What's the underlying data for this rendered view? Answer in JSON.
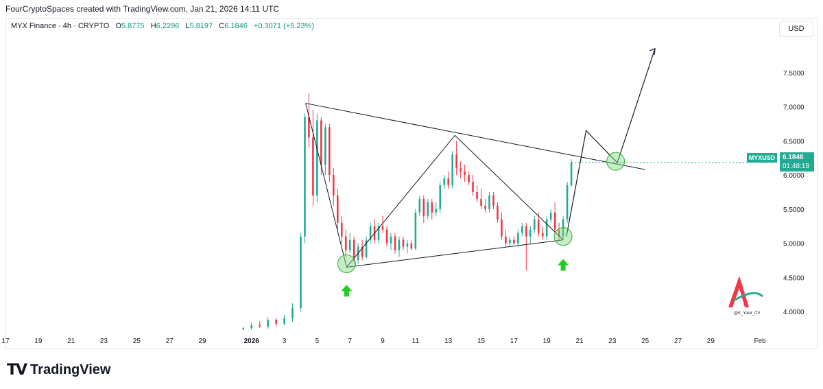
{
  "credit": "FourCryptoSpaces created with TradingView.com, Jan 21, 2026 14:11 UTC",
  "legend": {
    "symbol": "MYX Finance · 4h · CRYPTO",
    "o_label": "O",
    "o_value": "5.8775",
    "h_label": "H",
    "h_value": "6.2296",
    "l_label": "L",
    "l_value": "5.8197",
    "c_label": "C",
    "c_value": "6.1846",
    "change": "+0.3071 (+5.23%)"
  },
  "currency_button": "USD",
  "price_badge": {
    "symbol": "MYXUSD",
    "price": "6.1846",
    "countdown": "01:48:18"
  },
  "branding": {
    "logo_text": "TradingView",
    "watermark_text": "@K_Yasir_CV"
  },
  "colors": {
    "up": "#22ab94",
    "down": "#f23645",
    "line": "#131722",
    "highlight": "#7ddc7d",
    "arrow": "#22cc22"
  },
  "chart_data": {
    "type": "candlestick",
    "x_ticks": [
      "17",
      "19",
      "21",
      "23",
      "25",
      "27",
      "29",
      "2026",
      "3",
      "5",
      "7",
      "9",
      "11",
      "13",
      "15",
      "17",
      "19",
      "21",
      "23",
      "25",
      "27",
      "29",
      "Feb"
    ],
    "y_ticks": [
      "7.5000",
      "7.0000",
      "6.5000",
      "6.0000",
      "5.5000",
      "5.0000",
      "4.5000",
      "4.0000"
    ],
    "ylim": [
      3.7,
      8.0
    ],
    "x_range_days": [
      -15,
      32
    ],
    "last_price": 6.1846,
    "candles": [
      {
        "t": -0.5,
        "o": 3.74,
        "h": 3.78,
        "l": 3.72,
        "c": 3.76
      },
      {
        "t": 0.0,
        "o": 3.76,
        "h": 3.84,
        "l": 3.73,
        "c": 3.8
      },
      {
        "t": 0.5,
        "o": 3.8,
        "h": 3.86,
        "l": 3.76,
        "c": 3.78
      },
      {
        "t": 1.0,
        "o": 3.78,
        "h": 3.92,
        "l": 3.75,
        "c": 3.88
      },
      {
        "t": 1.5,
        "o": 3.88,
        "h": 3.9,
        "l": 3.78,
        "c": 3.82
      },
      {
        "t": 2.0,
        "o": 3.82,
        "h": 3.95,
        "l": 3.8,
        "c": 3.9
      },
      {
        "t": 2.5,
        "o": 3.9,
        "h": 4.12,
        "l": 3.85,
        "c": 4.05
      },
      {
        "t": 3.0,
        "o": 4.05,
        "h": 5.15,
        "l": 4.0,
        "c": 5.1
      },
      {
        "t": 3.25,
        "o": 5.1,
        "h": 6.9,
        "l": 5.0,
        "c": 6.85
      },
      {
        "t": 3.5,
        "o": 6.85,
        "h": 7.2,
        "l": 6.4,
        "c": 6.55
      },
      {
        "t": 3.75,
        "o": 6.55,
        "h": 6.95,
        "l": 5.55,
        "c": 5.7
      },
      {
        "t": 4.0,
        "o": 5.7,
        "h": 6.9,
        "l": 5.6,
        "c": 6.8
      },
      {
        "t": 4.25,
        "o": 6.8,
        "h": 6.85,
        "l": 6.0,
        "c": 6.15
      },
      {
        "t": 4.5,
        "o": 6.15,
        "h": 6.75,
        "l": 6.0,
        "c": 6.7
      },
      {
        "t": 4.75,
        "o": 6.7,
        "h": 6.75,
        "l": 5.9,
        "c": 6.0
      },
      {
        "t": 5.0,
        "o": 6.0,
        "h": 6.1,
        "l": 5.55,
        "c": 5.7
      },
      {
        "t": 5.25,
        "o": 5.7,
        "h": 5.8,
        "l": 5.2,
        "c": 5.3
      },
      {
        "t": 5.5,
        "o": 5.3,
        "h": 5.4,
        "l": 5.0,
        "c": 5.1
      },
      {
        "t": 5.75,
        "o": 5.1,
        "h": 5.2,
        "l": 4.8,
        "c": 4.9
      },
      {
        "t": 6.0,
        "o": 4.9,
        "h": 5.15,
        "l": 4.85,
        "c": 5.05
      },
      {
        "t": 6.25,
        "o": 5.05,
        "h": 5.1,
        "l": 4.7,
        "c": 4.75
      },
      {
        "t": 6.5,
        "o": 4.75,
        "h": 5.0,
        "l": 4.7,
        "c": 4.95
      },
      {
        "t": 6.75,
        "o": 4.95,
        "h": 5.05,
        "l": 4.75,
        "c": 4.8
      },
      {
        "t": 7.0,
        "o": 4.8,
        "h": 5.1,
        "l": 4.78,
        "c": 5.05
      },
      {
        "t": 7.25,
        "o": 5.05,
        "h": 5.3,
        "l": 5.0,
        "c": 5.25
      },
      {
        "t": 7.5,
        "o": 5.25,
        "h": 5.35,
        "l": 5.0,
        "c": 5.05
      },
      {
        "t": 7.75,
        "o": 5.05,
        "h": 5.3,
        "l": 5.0,
        "c": 5.25
      },
      {
        "t": 8.0,
        "o": 5.25,
        "h": 5.4,
        "l": 5.15,
        "c": 5.2
      },
      {
        "t": 8.25,
        "o": 5.2,
        "h": 5.25,
        "l": 4.95,
        "c": 5.0
      },
      {
        "t": 8.5,
        "o": 5.0,
        "h": 5.15,
        "l": 4.9,
        "c": 5.1
      },
      {
        "t": 8.75,
        "o": 5.1,
        "h": 5.15,
        "l": 4.85,
        "c": 4.9
      },
      {
        "t": 9.0,
        "o": 4.9,
        "h": 5.1,
        "l": 4.8,
        "c": 5.05
      },
      {
        "t": 9.25,
        "o": 5.05,
        "h": 5.1,
        "l": 4.9,
        "c": 4.95
      },
      {
        "t": 9.5,
        "o": 4.95,
        "h": 5.05,
        "l": 4.85,
        "c": 5.0
      },
      {
        "t": 9.75,
        "o": 5.0,
        "h": 5.05,
        "l": 4.9,
        "c": 4.92
      },
      {
        "t": 10.0,
        "o": 4.92,
        "h": 5.5,
        "l": 4.9,
        "c": 5.45
      },
      {
        "t": 10.25,
        "o": 5.45,
        "h": 5.7,
        "l": 5.4,
        "c": 5.65
      },
      {
        "t": 10.5,
        "o": 5.65,
        "h": 5.7,
        "l": 5.3,
        "c": 5.4
      },
      {
        "t": 10.75,
        "o": 5.4,
        "h": 5.65,
        "l": 5.35,
        "c": 5.6
      },
      {
        "t": 11.0,
        "o": 5.6,
        "h": 5.65,
        "l": 5.35,
        "c": 5.45
      },
      {
        "t": 11.25,
        "o": 5.45,
        "h": 5.6,
        "l": 5.4,
        "c": 5.5
      },
      {
        "t": 11.5,
        "o": 5.5,
        "h": 5.9,
        "l": 5.45,
        "c": 5.85
      },
      {
        "t": 11.75,
        "o": 5.85,
        "h": 6.0,
        "l": 5.8,
        "c": 5.95
      },
      {
        "t": 12.0,
        "o": 5.95,
        "h": 6.05,
        "l": 5.8,
        "c": 5.85
      },
      {
        "t": 12.25,
        "o": 5.85,
        "h": 6.35,
        "l": 5.8,
        "c": 6.3
      },
      {
        "t": 12.5,
        "o": 6.3,
        "h": 6.5,
        "l": 6.0,
        "c": 6.1
      },
      {
        "t": 12.75,
        "o": 6.1,
        "h": 6.2,
        "l": 5.95,
        "c": 6.05
      },
      {
        "t": 13.0,
        "o": 6.05,
        "h": 6.15,
        "l": 5.9,
        "c": 6.0
      },
      {
        "t": 13.25,
        "o": 6.0,
        "h": 6.05,
        "l": 5.85,
        "c": 5.9
      },
      {
        "t": 13.5,
        "o": 5.9,
        "h": 6.0,
        "l": 5.7,
        "c": 5.75
      },
      {
        "t": 13.75,
        "o": 5.75,
        "h": 5.85,
        "l": 5.6,
        "c": 5.65
      },
      {
        "t": 14.0,
        "o": 5.65,
        "h": 5.8,
        "l": 5.5,
        "c": 5.55
      },
      {
        "t": 14.25,
        "o": 5.55,
        "h": 5.65,
        "l": 5.45,
        "c": 5.5
      },
      {
        "t": 14.5,
        "o": 5.5,
        "h": 5.75,
        "l": 5.45,
        "c": 5.7
      },
      {
        "t": 14.75,
        "o": 5.7,
        "h": 5.75,
        "l": 5.5,
        "c": 5.55
      },
      {
        "t": 15.0,
        "o": 5.55,
        "h": 5.6,
        "l": 5.3,
        "c": 5.35
      },
      {
        "t": 15.25,
        "o": 5.35,
        "h": 5.45,
        "l": 5.05,
        "c": 5.1
      },
      {
        "t": 15.5,
        "o": 5.1,
        "h": 5.2,
        "l": 4.95,
        "c": 5.0
      },
      {
        "t": 15.75,
        "o": 5.0,
        "h": 5.1,
        "l": 4.95,
        "c": 5.05
      },
      {
        "t": 16.0,
        "o": 5.05,
        "h": 5.1,
        "l": 4.98,
        "c": 5.0
      },
      {
        "t": 16.25,
        "o": 5.0,
        "h": 5.2,
        "l": 4.95,
        "c": 5.15
      },
      {
        "t": 16.5,
        "o": 5.15,
        "h": 5.3,
        "l": 5.1,
        "c": 5.25
      },
      {
        "t": 16.75,
        "o": 5.25,
        "h": 5.3,
        "l": 4.6,
        "c": 5.1
      },
      {
        "t": 17.0,
        "o": 5.1,
        "h": 5.25,
        "l": 5.0,
        "c": 5.2
      },
      {
        "t": 17.25,
        "o": 5.2,
        "h": 5.4,
        "l": 5.15,
        "c": 5.35
      },
      {
        "t": 17.5,
        "o": 5.35,
        "h": 5.45,
        "l": 5.1,
        "c": 5.15
      },
      {
        "t": 17.75,
        "o": 5.15,
        "h": 5.25,
        "l": 5.05,
        "c": 5.1
      },
      {
        "t": 18.0,
        "o": 5.1,
        "h": 5.4,
        "l": 5.05,
        "c": 5.35
      },
      {
        "t": 18.25,
        "o": 5.35,
        "h": 5.5,
        "l": 5.3,
        "c": 5.45
      },
      {
        "t": 18.5,
        "o": 5.45,
        "h": 5.6,
        "l": 5.15,
        "c": 5.2
      },
      {
        "t": 18.75,
        "o": 5.2,
        "h": 5.3,
        "l": 5.05,
        "c": 5.1
      },
      {
        "t": 19.0,
        "o": 5.1,
        "h": 5.4,
        "l": 5.05,
        "c": 5.35
      },
      {
        "t": 19.25,
        "o": 5.35,
        "h": 5.9,
        "l": 5.3,
        "c": 5.85
      },
      {
        "t": 19.5,
        "o": 5.85,
        "h": 6.23,
        "l": 5.82,
        "c": 6.18
      }
    ],
    "annotations": {
      "triangle_upper_line": [
        [
          3.3,
          7.05
        ],
        [
          24.0,
          6.08
        ]
      ],
      "triangle_lower_line": [
        [
          5.8,
          4.65
        ],
        [
          19.0,
          5.05
        ]
      ],
      "zigzag": [
        [
          3.3,
          7.05
        ],
        [
          5.8,
          4.65
        ],
        [
          12.4,
          6.58
        ],
        [
          19.0,
          5.05
        ]
      ],
      "projection": [
        [
          19.2,
          5.1
        ],
        [
          20.4,
          6.65
        ],
        [
          22.3,
          6.18
        ],
        [
          24.6,
          7.85
        ]
      ],
      "highlight_circles": [
        [
          5.8,
          4.7
        ],
        [
          19.0,
          5.1
        ],
        [
          22.2,
          6.2
        ]
      ],
      "up_arrows": [
        [
          5.8,
          4.3
        ],
        [
          19.0,
          4.68
        ]
      ]
    }
  }
}
